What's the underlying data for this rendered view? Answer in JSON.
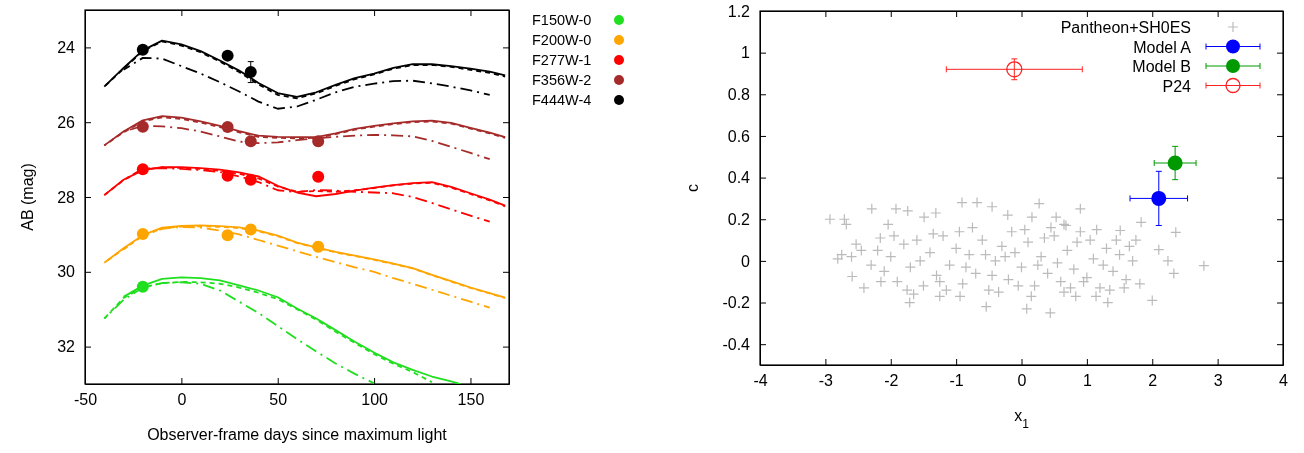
{
  "chart_data": [
    {
      "type": "line",
      "xlabel": "Observer-frame days since maximum light",
      "ylabel": "AB (mag)",
      "xlim": [
        -50,
        170
      ],
      "ylim": [
        33,
        23
      ],
      "xticks": [
        -50,
        0,
        50,
        100,
        150
      ],
      "yticks": [
        24,
        26,
        28,
        30,
        32
      ],
      "legend": "right",
      "series": [
        {
          "type": "scatter",
          "name": "F150W-0",
          "color": "#1fdf1f",
          "marker": "circle",
          "x": [
            -20
          ],
          "values": [
            30.4
          ],
          "errors": [
            0.12
          ]
        },
        {
          "type": "scatter",
          "name": "F200W-0",
          "color": "#ffa500",
          "marker": "circle",
          "x": [
            -20,
            24,
            36,
            71
          ],
          "values": [
            28.99,
            29.02,
            28.87,
            29.33
          ],
          "errors": [
            null,
            null,
            0.12,
            0.13
          ]
        },
        {
          "type": "scatter",
          "name": "F277W-1",
          "color": "#ff0000",
          "marker": "circle",
          "x": [
            -20,
            24,
            36,
            71
          ],
          "values": [
            27.26,
            27.43,
            27.54,
            27.46
          ],
          "errors": [
            null,
            null,
            null,
            null
          ]
        },
        {
          "type": "scatter",
          "name": "F356W-2",
          "color": "#a52a2a",
          "marker": "circle",
          "x": [
            -20,
            24,
            36,
            71
          ],
          "values": [
            26.12,
            26.13,
            26.51,
            26.51
          ],
          "errors": [
            null,
            null,
            null,
            0.12
          ]
        },
        {
          "type": "scatter",
          "name": "F444W-4",
          "color": "#000000",
          "marker": "circle",
          "x": [
            -20,
            24,
            36
          ],
          "values": [
            24.06,
            24.22,
            24.66
          ],
          "errors": [
            null,
            null,
            0.28
          ]
        },
        {
          "color": "#1fdf1f",
          "line_style": "solid",
          "x": [
            -30,
            -20,
            -10,
            0,
            10,
            20,
            30,
            40,
            50,
            60,
            70,
            80,
            90,
            100,
            110,
            120,
            130,
            140,
            145
          ],
          "values": [
            30.67,
            30.37,
            30.19,
            30.15,
            30.17,
            30.23,
            30.36,
            30.5,
            30.68,
            30.98,
            31.25,
            31.56,
            31.87,
            32.16,
            32.42,
            32.62,
            32.8,
            32.93,
            33.0
          ]
        },
        {
          "color": "#1fdf1f",
          "line_style": "dashed",
          "x": [
            -40,
            -30,
            -20,
            -10,
            0,
            10,
            20,
            30,
            40,
            50,
            60,
            70,
            80,
            90,
            100,
            110,
            120,
            130
          ],
          "values": [
            31.25,
            30.7,
            30.42,
            30.3,
            30.27,
            30.28,
            30.32,
            30.42,
            30.56,
            30.73,
            31.0,
            31.28,
            31.6,
            31.9,
            32.2,
            32.46,
            32.68,
            32.95
          ]
        },
        {
          "color": "#1fdf1f",
          "line_style": "dashdot",
          "x": [
            -40,
            -30,
            -20,
            -10,
            0,
            10,
            20,
            30,
            40,
            50,
            60,
            70,
            80,
            90,
            100
          ],
          "values": [
            31.25,
            30.75,
            30.42,
            30.3,
            30.28,
            30.32,
            30.5,
            30.8,
            31.1,
            31.45,
            31.8,
            32.13,
            32.45,
            32.73,
            32.98
          ]
        },
        {
          "color": "#ffa500",
          "line_style": "solid",
          "x": [
            -40,
            -30,
            -20,
            -10,
            0,
            10,
            20,
            30,
            40,
            50,
            60,
            70,
            80,
            90,
            100,
            110,
            120,
            130,
            140,
            150,
            160,
            168
          ],
          "values": [
            29.76,
            29.37,
            29.02,
            28.82,
            28.77,
            28.76,
            28.78,
            28.81,
            28.9,
            29.03,
            29.22,
            29.35,
            29.47,
            29.57,
            29.67,
            29.78,
            29.9,
            30.08,
            30.25,
            30.42,
            30.57,
            30.69
          ]
        },
        {
          "color": "#ffa500",
          "line_style": "dashed",
          "x": [
            -40,
            -30,
            -20,
            -10,
            0,
            10,
            20,
            30,
            40,
            50,
            60,
            70,
            80,
            90,
            100,
            110,
            120,
            130,
            140,
            150,
            160,
            168
          ],
          "values": [
            29.76,
            29.39,
            29.04,
            28.84,
            28.79,
            28.78,
            28.8,
            28.83,
            28.92,
            29.05,
            29.23,
            29.36,
            29.48,
            29.58,
            29.68,
            29.79,
            29.91,
            30.09,
            30.26,
            30.43,
            30.58,
            30.7
          ]
        },
        {
          "color": "#ffa500",
          "line_style": "dashdot",
          "x": [
            -30,
            -20,
            -10,
            0,
            10,
            20,
            30,
            40,
            50,
            60,
            70,
            80,
            90,
            100,
            110,
            120,
            130,
            140,
            150,
            160
          ],
          "values": [
            29.4,
            29.03,
            28.85,
            28.8,
            28.82,
            28.9,
            29.0,
            29.15,
            29.3,
            29.45,
            29.6,
            29.74,
            29.88,
            30.0,
            30.17,
            30.32,
            30.48,
            30.64,
            30.8,
            30.96
          ]
        },
        {
          "color": "#ff0000",
          "line_style": "solid",
          "x": [
            -40,
            -30,
            -20,
            -10,
            0,
            10,
            20,
            30,
            40,
            50,
            60,
            70,
            80,
            90,
            100,
            110,
            120,
            130,
            140,
            150,
            160,
            168
          ],
          "values": [
            27.95,
            27.54,
            27.28,
            27.2,
            27.2,
            27.23,
            27.27,
            27.34,
            27.45,
            27.7,
            27.88,
            27.98,
            27.92,
            27.83,
            27.75,
            27.68,
            27.63,
            27.6,
            27.73,
            27.9,
            28.07,
            28.23
          ]
        },
        {
          "color": "#ff0000",
          "line_style": "dashed",
          "x": [
            -40,
            -30,
            -20,
            -10,
            0,
            10,
            20,
            30,
            40,
            50,
            60,
            70,
            80,
            90,
            100,
            110,
            120,
            130,
            140,
            150,
            160,
            168
          ],
          "values": [
            27.95,
            27.55,
            27.27,
            27.21,
            27.22,
            27.25,
            27.3,
            27.38,
            27.5,
            27.72,
            27.86,
            27.84,
            27.86,
            27.82,
            27.76,
            27.69,
            27.64,
            27.62,
            27.75,
            27.92,
            28.09,
            28.25
          ]
        },
        {
          "color": "#ff0000",
          "line_style": "dashdot",
          "x": [
            -30,
            -20,
            -10,
            0,
            10,
            20,
            30,
            40,
            50,
            60,
            70,
            80,
            90,
            100,
            110,
            120,
            130,
            140,
            150,
            160
          ],
          "values": [
            27.55,
            27.24,
            27.23,
            27.25,
            27.28,
            27.33,
            27.45,
            27.6,
            27.82,
            27.87,
            27.81,
            27.83,
            27.86,
            27.88,
            27.9,
            28.0,
            28.16,
            28.33,
            28.5,
            28.66
          ]
        },
        {
          "color": "#a52a2a",
          "line_style": "solid",
          "x": [
            -40,
            -30,
            -20,
            -10,
            0,
            10,
            20,
            30,
            40,
            50,
            60,
            70,
            80,
            90,
            100,
            110,
            120,
            130,
            140,
            150,
            160,
            168
          ],
          "values": [
            26.62,
            26.25,
            25.95,
            25.84,
            25.88,
            25.98,
            26.1,
            26.24,
            26.36,
            26.39,
            26.4,
            26.4,
            26.3,
            26.18,
            26.1,
            26.03,
            25.98,
            25.96,
            26.02,
            26.15,
            26.28,
            26.4
          ]
        },
        {
          "color": "#a52a2a",
          "line_style": "dashed",
          "x": [
            -40,
            -30,
            -20,
            -10,
            0,
            10,
            20,
            30,
            40,
            50,
            60,
            70,
            80,
            90,
            100,
            110,
            120,
            130,
            140,
            150,
            160,
            168
          ],
          "values": [
            26.62,
            26.27,
            25.98,
            25.87,
            25.91,
            26.01,
            26.13,
            26.27,
            26.39,
            26.42,
            26.43,
            26.42,
            26.32,
            26.2,
            26.12,
            26.05,
            26.0,
            25.98,
            26.04,
            26.17,
            26.3,
            26.42
          ]
        },
        {
          "color": "#a52a2a",
          "line_style": "dashdot",
          "x": [
            -30,
            -20,
            -10,
            0,
            10,
            20,
            30,
            40,
            50,
            60,
            70,
            80,
            90,
            100,
            110,
            120,
            130,
            140,
            150,
            160
          ],
          "values": [
            26.25,
            26.1,
            26.11,
            26.16,
            26.25,
            26.38,
            26.52,
            26.56,
            26.54,
            26.48,
            26.43,
            26.39,
            26.36,
            26.34,
            26.35,
            26.38,
            26.5,
            26.66,
            26.82,
            26.99
          ]
        },
        {
          "color": "#000000",
          "line_style": "solid",
          "x": [
            -40,
            -30,
            -20,
            -10,
            0,
            10,
            20,
            30,
            40,
            50,
            60,
            70,
            80,
            90,
            100,
            110,
            120,
            130,
            140,
            150,
            160,
            168
          ],
          "values": [
            25.05,
            24.55,
            24.08,
            23.82,
            23.92,
            24.1,
            24.35,
            24.62,
            24.95,
            25.22,
            25.32,
            25.2,
            25.0,
            24.82,
            24.7,
            24.55,
            24.45,
            24.45,
            24.5,
            24.57,
            24.65,
            24.75
          ]
        },
        {
          "color": "#000000",
          "line_style": "dashed",
          "x": [
            -40,
            -30,
            -20,
            -10,
            0,
            10,
            20,
            30,
            40,
            50,
            60,
            70,
            80,
            90,
            100,
            110,
            120,
            130,
            140,
            150,
            160,
            168
          ],
          "values": [
            25.05,
            24.57,
            24.1,
            23.84,
            23.95,
            24.13,
            24.38,
            24.66,
            24.99,
            25.27,
            25.36,
            25.23,
            25.03,
            24.85,
            24.72,
            24.57,
            24.47,
            24.47,
            24.52,
            24.6,
            24.68,
            24.78
          ]
        },
        {
          "color": "#000000",
          "line_style": "dashdot",
          "x": [
            -30,
            -20,
            -10,
            0,
            10,
            20,
            30,
            40,
            50,
            60,
            70,
            80,
            90,
            100,
            110,
            120,
            130,
            140,
            150,
            160
          ],
          "values": [
            24.6,
            24.28,
            24.3,
            24.5,
            24.7,
            24.93,
            25.18,
            25.45,
            25.64,
            25.58,
            25.4,
            25.2,
            25.05,
            24.97,
            24.9,
            24.89,
            24.96,
            25.05,
            25.15,
            25.27
          ]
        }
      ]
    },
    {
      "type": "scatter",
      "xlabel": "x$_{1}$",
      "ylabel": "c",
      "xlim": [
        -4,
        4
      ],
      "ylim": [
        -0.5,
        1.2
      ],
      "xticks": [
        -4,
        -3,
        -2,
        -1,
        0,
        1,
        2,
        3,
        4
      ],
      "yticks": [
        -0.4,
        -0.2,
        0,
        0.2,
        0.4,
        0.6,
        0.8,
        1,
        1.2
      ],
      "legend": "top right",
      "series": [
        {
          "name": "Pantheon+SH0ES",
          "color": "#bbbbbb",
          "marker": "cross",
          "x": [
            -2.93,
            -2.71,
            -2.68,
            -2.29,
            -1.92,
            -1.74,
            -0.91,
            -0.68,
            0.27,
            0.9,
            1.83,
            2.36,
            2.1,
            2.24,
            2.33,
            2.79,
            2.0,
            -1.71,
            -0.54,
            0.44,
            0.08,
            1.32,
            -2.81,
            -2.59,
            -2.41,
            -2.53,
            -2.16,
            -2.04,
            -1.31,
            -1.49,
            -0.45,
            -0.21,
            0.16,
            0.53,
            0.65,
            1.51,
            1.75,
            1.81,
            1.57,
            -1.25,
            -0.94,
            0.83,
            1.14,
            -2.2,
            -2.1,
            -2.0,
            -1.9,
            -1.8,
            -1.7,
            -1.6,
            -1.5,
            -1.4,
            -1.3,
            -1.2,
            -1.1,
            -1.0,
            -0.9,
            -0.8,
            -0.7,
            -0.6,
            -0.5,
            -0.4,
            -0.3,
            -0.2,
            -0.1,
            0.0,
            0.1,
            0.2,
            0.3,
            0.4,
            0.5,
            0.6,
            0.7,
            0.8,
            0.9,
            1.0,
            1.1,
            1.2,
            1.3,
            1.4,
            1.5,
            1.6,
            1.7,
            -2.15,
            -1.95,
            -1.75,
            -1.55,
            -1.35,
            -1.15,
            -0.95,
            -0.75,
            -0.55,
            -0.35,
            -0.15,
            0.05,
            0.25,
            0.45,
            0.65,
            0.85,
            1.05,
            1.25,
            1.45,
            1.65,
            -0.85,
            -0.45,
            0.15,
            0.35,
            0.55,
            0.75,
            0.95,
            1.15,
            -1.25,
            -1.65,
            -0.05,
            -0.25,
            0.68,
            1.35,
            -2.3,
            -2.45,
            -2.6,
            -2.75
          ],
          "values": [
            0.2,
            0.2,
            0.175,
            0.25,
            0.25,
            0.24,
            0.28,
            0.28,
            0.275,
            0.25,
            0.185,
            0.137,
            0.054,
            0.0,
            -0.06,
            -0.023,
            -0.19,
            -0.2,
            -0.22,
            -0.25,
            -0.23,
            -0.2,
            0.01,
            -0.075,
            -0.13,
            0.08,
            0.11,
            0.175,
            0.23,
            0.21,
            0.26,
            0.22,
            0.21,
            0.21,
            0.175,
            0.146,
            0.1,
            -0.11,
            -0.13,
            -0.17,
            -0.17,
            -0.17,
            -0.17,
            0.05,
            -0.05,
            0.02,
            -0.1,
            0.08,
            -0.03,
            0.1,
            -0.12,
            0.04,
            -0.07,
            0.12,
            -0.02,
            0.06,
            -0.11,
            0.03,
            -0.06,
            0.1,
            -0.14,
            0.0,
            0.07,
            -0.09,
            0.04,
            -0.03,
            0.09,
            -0.12,
            0.02,
            -0.06,
            0.12,
            -0.1,
            0.05,
            -0.04,
            0.14,
            -0.08,
            0.01,
            -0.13,
            0.06,
            -0.05,
            0.03,
            -0.09,
            0.0,
            -0.1,
            0.12,
            -0.14,
            0.0,
            0.13,
            -0.14,
            0.14,
            0.16,
            0.03,
            -0.15,
            0.14,
            0.15,
            -0.02,
            0.16,
            -0.15,
            0.09,
            0.1,
            -0.02,
            0.1,
            0.07,
            -0.03,
            -0.07,
            -0.17,
            0.11,
            -0.01,
            -0.13,
            -0.1,
            0.15,
            -0.1,
            -0.16,
            -0.12,
            0.02,
            0.17,
            -0.14,
            -0.02,
            0.05,
            0.02,
            0.03
          ]
        },
        {
          "name": "Model A",
          "color": "#0000ff",
          "marker": "circle",
          "x": [
            2.1
          ],
          "values": [
            0.3
          ],
          "errors": [
            0.13
          ],
          "xerrors": [
            0.44
          ]
        },
        {
          "name": "Model B",
          "color": "#009900",
          "marker": "circle",
          "x": [
            2.35
          ],
          "values": [
            0.47
          ],
          "errors": [
            0.08
          ],
          "xerrors": [
            0.32
          ]
        },
        {
          "name": "P24",
          "color": "#ff2222",
          "marker": "circle-open",
          "x": [
            -0.11
          ],
          "values": [
            0.92
          ],
          "errors": [
            0.05
          ],
          "xerrors": [
            [
              -1.15,
              0.93
            ]
          ]
        }
      ]
    }
  ]
}
